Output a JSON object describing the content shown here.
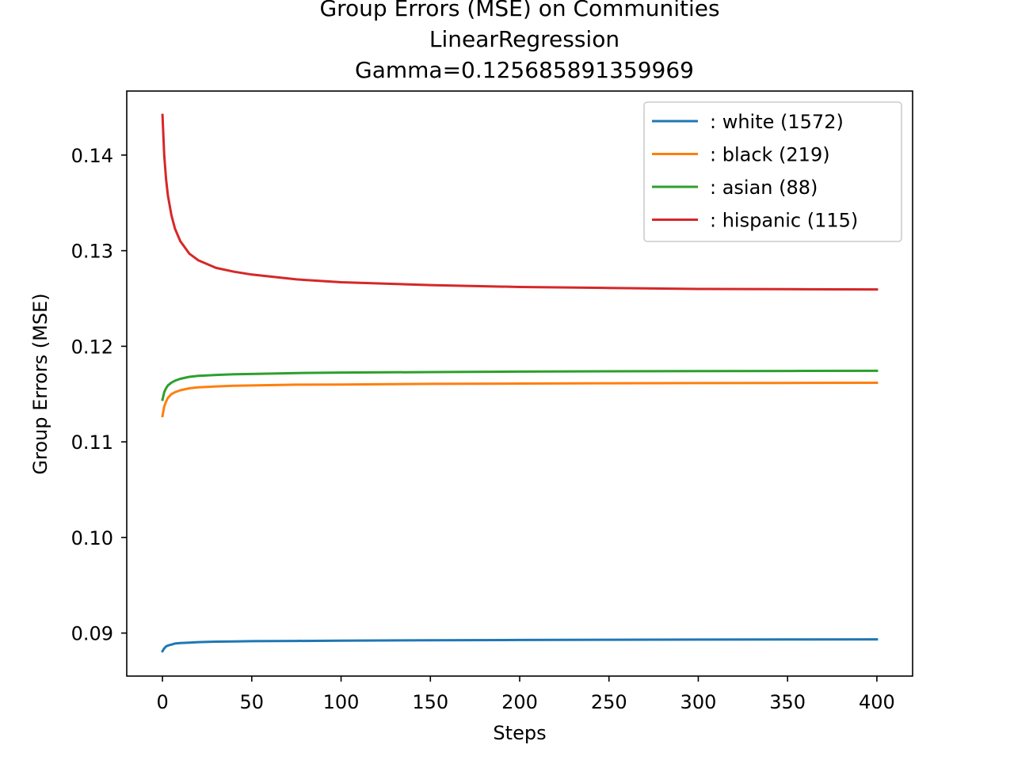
{
  "chart_data": {
    "type": "line",
    "title_lines": [
      "Group Errors (MSE) on Communities",
      "LinearRegression",
      "Gamma=0.125685891359969"
    ],
    "xlabel": "Steps",
    "ylabel": "Group Errors (MSE)",
    "xlim": [
      -20,
      420
    ],
    "ylim": [
      0.0855,
      0.1467
    ],
    "xticks": [
      0,
      50,
      100,
      150,
      200,
      250,
      300,
      350,
      400
    ],
    "xtick_labels": [
      "0",
      "50",
      "100",
      "150",
      "200",
      "250",
      "300",
      "350",
      "400"
    ],
    "yticks": [
      0.09,
      0.1,
      0.11,
      0.12,
      0.13,
      0.14
    ],
    "ytick_labels": [
      "0.09",
      "0.10",
      "0.11",
      "0.12",
      "0.13",
      "0.14"
    ],
    "grid": false,
    "legend_position": "top-right",
    "x": [
      0,
      1,
      2,
      3,
      5,
      7,
      10,
      15,
      20,
      30,
      40,
      50,
      75,
      100,
      150,
      200,
      250,
      300,
      350,
      400
    ],
    "series": [
      {
        "name": " : white  (1572)",
        "color": "#1f77b4",
        "values": [
          0.0881,
          0.0884,
          0.0886,
          0.0887,
          0.0888,
          0.0889,
          0.08895,
          0.089,
          0.08905,
          0.0891,
          0.08913,
          0.08915,
          0.08918,
          0.0892,
          0.08925,
          0.08928,
          0.0893,
          0.08932,
          0.08933,
          0.08934
        ]
      },
      {
        "name": " : black  (219)",
        "color": "#ff7f0e",
        "values": [
          0.1127,
          0.1137,
          0.1142,
          0.1146,
          0.115,
          0.1152,
          0.1154,
          0.1156,
          0.1157,
          0.1158,
          0.11587,
          0.1159,
          0.11598,
          0.116,
          0.11607,
          0.1161,
          0.11613,
          0.11615,
          0.11617,
          0.11618
        ]
      },
      {
        "name": " : asian  (88)",
        "color": "#2ca02c",
        "values": [
          0.1144,
          0.1152,
          0.1156,
          0.1159,
          0.1162,
          0.1164,
          0.1166,
          0.1168,
          0.1169,
          0.117,
          0.11707,
          0.1171,
          0.1172,
          0.11725,
          0.1173,
          0.11735,
          0.11738,
          0.1174,
          0.11742,
          0.11743
        ]
      },
      {
        "name": " : hispanic  (115)",
        "color": "#d62728",
        "values": [
          0.1442,
          0.14,
          0.1375,
          0.1358,
          0.1337,
          0.1323,
          0.131,
          0.1297,
          0.129,
          0.1282,
          0.1278,
          0.1275,
          0.127,
          0.1267,
          0.1264,
          0.1262,
          0.1261,
          0.126,
          0.12597,
          0.12595
        ]
      }
    ]
  }
}
